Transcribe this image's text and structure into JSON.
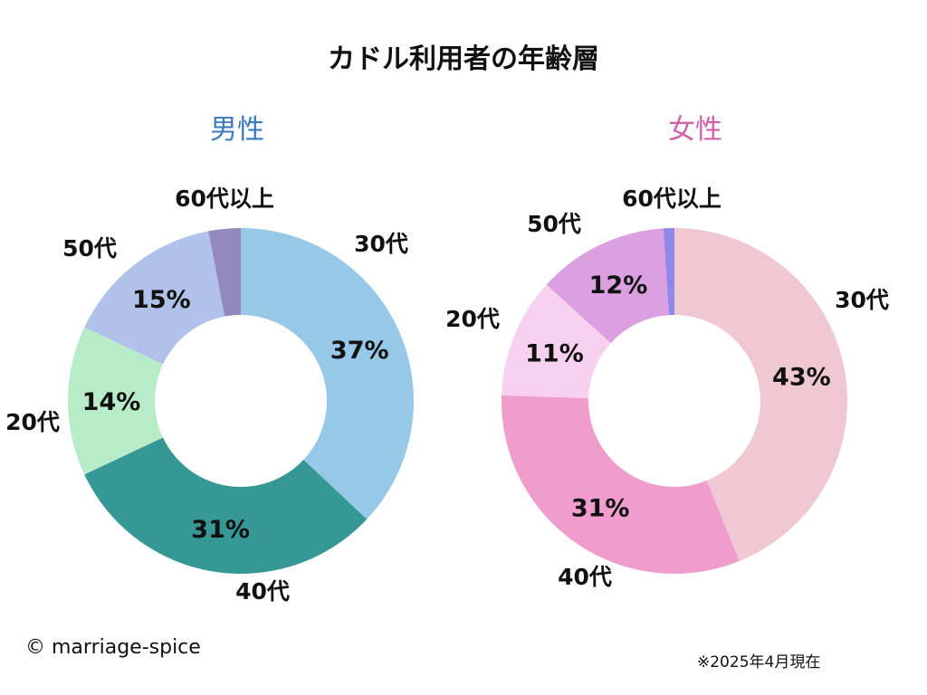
{
  "title": "カドル利用者の年齢層",
  "chart_data": [
    {
      "type": "pie",
      "title": "男性",
      "title_color": "#3a78c0",
      "categories": [
        "30代",
        "40代",
        "20代",
        "50代",
        "60代以上"
      ],
      "values": [
        37,
        31,
        14,
        15,
        3
      ],
      "value_labels": [
        "37%",
        "31%",
        "14%",
        "15%",
        ""
      ],
      "colors": [
        "#98c8e8",
        "#369894",
        "#b8ecc8",
        "#b0c2ea",
        "#9488c0"
      ]
    },
    {
      "type": "pie",
      "title": "女性",
      "title_color": "#d060a8",
      "categories": [
        "30代",
        "40代",
        "20代",
        "50代",
        "60代以上"
      ],
      "values": [
        43,
        31,
        11,
        12,
        1
      ],
      "value_labels": [
        "43%",
        "31%",
        "11%",
        "12%",
        ""
      ],
      "colors": [
        "#f0c8d4",
        "#f09ccc",
        "#f8d0f0",
        "#dca0e0",
        "#9088e8"
      ]
    }
  ],
  "footer": {
    "copyright": "© marriage-spice",
    "as_of": "※2025年4月現在"
  }
}
